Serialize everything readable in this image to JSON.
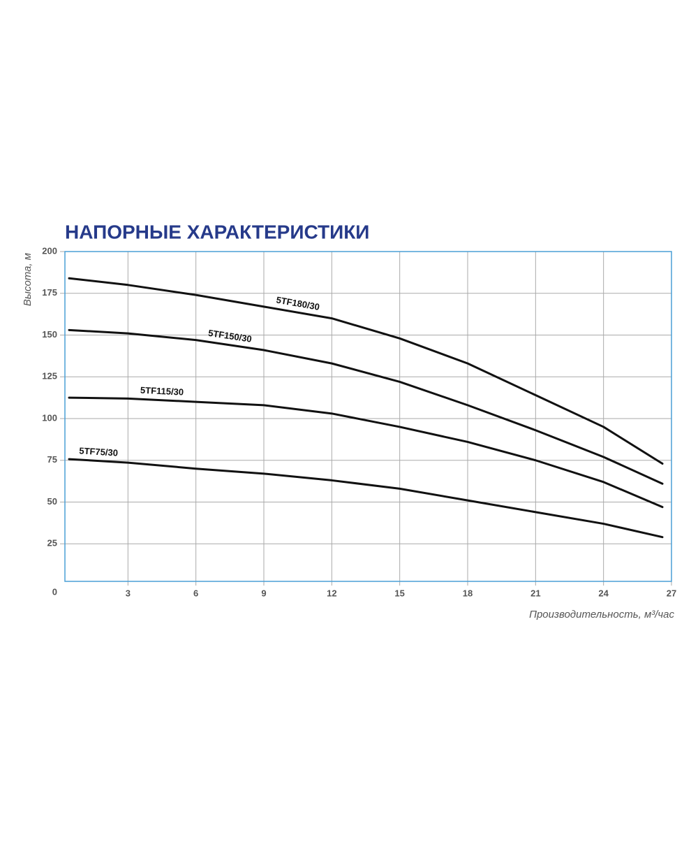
{
  "chart_data": {
    "type": "line",
    "title": "НАПОРНЫЕ ХАРАКТЕРИСТИКИ",
    "y_label": "Высота, м",
    "x_label": "Производительность, м³/час",
    "xlim": [
      0,
      27
    ],
    "ylim": [
      0,
      200
    ],
    "xticks": [
      3,
      6,
      9,
      12,
      15,
      18,
      21,
      24,
      27
    ],
    "yticks": [
      0,
      25,
      50,
      75,
      100,
      125,
      150,
      175,
      200
    ],
    "grid": true,
    "x": [
      0.4,
      3,
      6,
      9,
      12,
      15,
      18,
      21,
      24,
      26.6
    ],
    "series": [
      {
        "name": "5TF180/30",
        "color": "#111111",
        "values": [
          184,
          180,
          174,
          167,
          160,
          148,
          133,
          114,
          95,
          73
        ]
      },
      {
        "name": "5TF150/30",
        "color": "#111111",
        "values": [
          153,
          151,
          147,
          141,
          133,
          122,
          108,
          93,
          77,
          61
        ]
      },
      {
        "name": "5TF115/30",
        "color": "#111111",
        "values": [
          112.5,
          112,
          110,
          108,
          103,
          95,
          86,
          75,
          62,
          47
        ]
      },
      {
        "name": "5TF75/30",
        "color": "#111111",
        "values": [
          75.7,
          73.6,
          70,
          67,
          63,
          58,
          51,
          44,
          37,
          29
        ]
      }
    ]
  }
}
